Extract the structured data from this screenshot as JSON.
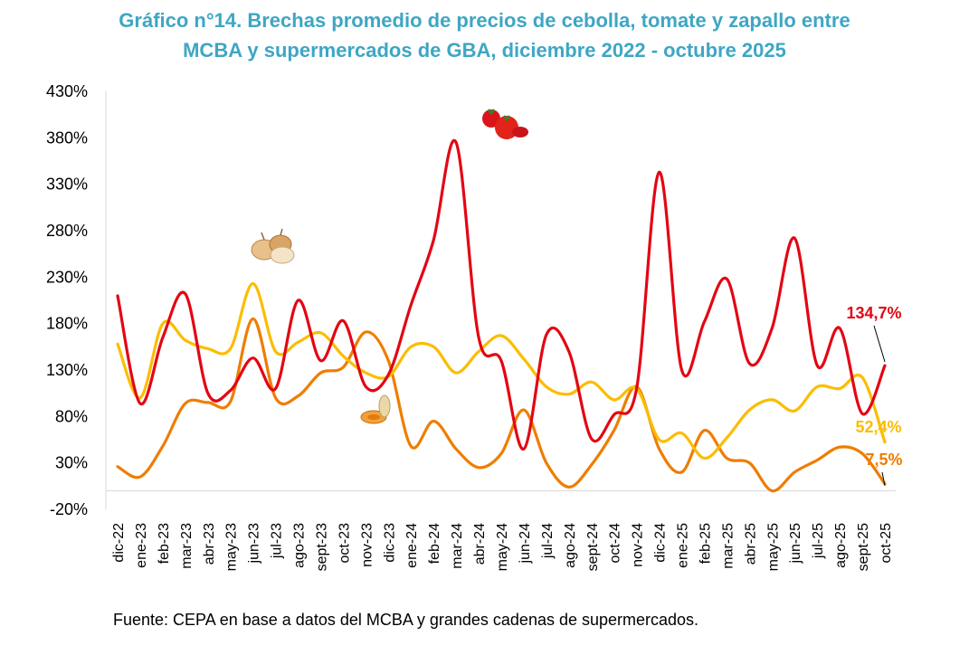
{
  "chart_data": {
    "type": "line",
    "title_line1": "Gráfico n°14. Brechas promedio de precios de cebolla, tomate y zapallo entre",
    "title_line2": "MCBA y supermercados de GBA, diciembre 2022 - octubre 2025",
    "source": "Fuente: CEPA en base a datos del MCBA y grandes cadenas de supermercados.",
    "ylim": [
      -20,
      430
    ],
    "yticks": [
      -20,
      30,
      80,
      130,
      180,
      230,
      280,
      330,
      380,
      430
    ],
    "ytick_labels": [
      "-20%",
      "30%",
      "80%",
      "130%",
      "180%",
      "230%",
      "280%",
      "330%",
      "380%",
      "430%"
    ],
    "categories": [
      "dic-22",
      "ene-23",
      "feb-23",
      "mar-23",
      "abr-23",
      "may-23",
      "jun-23",
      "jul-23",
      "ago-23",
      "sept-23",
      "oct-23",
      "nov-23",
      "dic-23",
      "ene-24",
      "feb-24",
      "mar-24",
      "abr-24",
      "may-24",
      "jun-24",
      "jul-24",
      "ago-24",
      "sept-24",
      "oct-24",
      "nov-24",
      "dic-24",
      "ene-25",
      "feb-25",
      "mar-25",
      "abr-25",
      "may-25",
      "jun-25",
      "jul-25",
      "ago-25",
      "sept-25",
      "oct-25"
    ],
    "series": [
      {
        "name": "Tomate",
        "color": "#e30613",
        "values": [
          210,
          94,
          165,
          212,
          105,
          108,
          143,
          110,
          205,
          140,
          183,
          112,
          125,
          200,
          270,
          375,
          165,
          140,
          45,
          168,
          150,
          56,
          82,
          110,
          343,
          130,
          182,
          228,
          137,
          175,
          272,
          135,
          175,
          83,
          134.7
        ],
        "end_label": "134,7%"
      },
      {
        "name": "Zapallo",
        "color": "#fbbd00",
        "values": [
          158,
          100,
          180,
          162,
          153,
          153,
          223,
          150,
          160,
          170,
          145,
          127,
          123,
          155,
          155,
          127,
          150,
          167,
          142,
          112,
          104,
          117,
          98,
          110,
          55,
          62,
          35,
          57,
          87,
          98,
          86,
          112,
          110,
          122,
          52.4
        ],
        "end_label": "52,4%"
      },
      {
        "name": "Cebolla",
        "color": "#ef7d00",
        "values": [
          26,
          15,
          48,
          94,
          95,
          96,
          185,
          100,
          102,
          127,
          133,
          171,
          140,
          48,
          75,
          45,
          25,
          40,
          87,
          30,
          4,
          28,
          65,
          112,
          45,
          20,
          65,
          35,
          30,
          0,
          20,
          33,
          47,
          40,
          7.5
        ],
        "end_label": "7,5%"
      }
    ]
  }
}
